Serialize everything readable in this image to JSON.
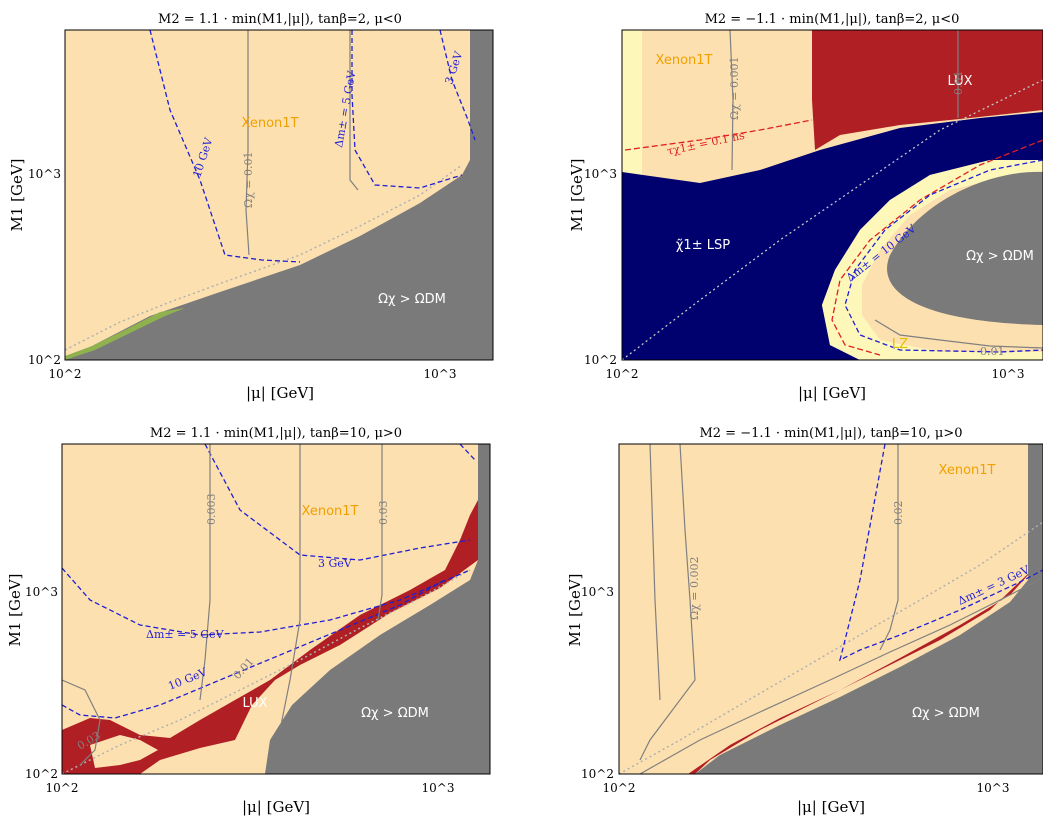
{
  "chart_data": [
    {
      "type": "area",
      "title": "M2 = 1.1 · min(M1,|μ|),  tanβ=2,  μ<0",
      "xlabel": "|μ| [GeV]",
      "ylabel": "M1 [GeV]",
      "xscale": "log",
      "yscale": "log",
      "xlim": [
        100,
        1250
      ],
      "ylim": [
        100,
        6000
      ],
      "xticks": [
        "10^2",
        "10^3"
      ],
      "yticks": [
        "10^2",
        "10^3"
      ],
      "regions": [
        "Xenon1T",
        "Ωχ > ΩDM"
      ],
      "contours": [
        {
          "label": "10 GeV",
          "style": "dashed",
          "color": "#1f1fd6"
        },
        {
          "label": "Δm± = 5 GeV",
          "style": "dashed",
          "color": "#1f1fd6"
        },
        {
          "label": "3 GeV",
          "style": "dashed",
          "color": "#1f1fd6"
        },
        {
          "label": "Ωχ = 0.01",
          "style": "solid",
          "color": "#808080"
        }
      ]
    },
    {
      "type": "area",
      "title": "M2 = −1.1 · min(M1,|μ|),  tanβ=2,  μ<0",
      "xlabel": "|μ| [GeV]",
      "ylabel": "M1 [GeV]",
      "xscale": "log",
      "yscale": "log",
      "xlim": [
        100,
        1250
      ],
      "ylim": [
        100,
        6000
      ],
      "xticks": [
        "10^2",
        "10^3"
      ],
      "yticks": [
        "10^2",
        "10^3"
      ],
      "regions": [
        "Xenon1T",
        "LUX",
        "χ̃1± LSP",
        "Ωχ > ΩDM",
        "LZ"
      ],
      "contours": [
        {
          "label": "Ωχ = 0.001",
          "style": "solid",
          "color": "#808080"
        },
        {
          "label": "0.01",
          "style": "solid",
          "color": "#808080"
        },
        {
          "label": "τχ1± = 0.1 ns",
          "style": "dashed",
          "color": "#e02020"
        },
        {
          "label": "Δm± = 10 GeV",
          "style": "dashed",
          "color": "#1f1fd6"
        },
        {
          "label": "0.01",
          "style": "solid",
          "color": "#808080"
        }
      ]
    },
    {
      "type": "area",
      "title": "M2 = 1.1 · min(M1,|μ|),  tanβ=10,  μ>0",
      "xlabel": "|μ| [GeV]",
      "ylabel": "M1 [GeV]",
      "xscale": "log",
      "yscale": "log",
      "xlim": [
        100,
        1250
      ],
      "ylim": [
        100,
        6000
      ],
      "xticks": [
        "10^2",
        "10^3"
      ],
      "yticks": [
        "10^2",
        "10^3"
      ],
      "regions": [
        "Xenon1T",
        "LUX",
        "Ωχ > ΩDM"
      ],
      "contours": [
        {
          "label": "0.003",
          "style": "solid",
          "color": "#808080"
        },
        {
          "label": "0.03",
          "style": "solid",
          "color": "#808080"
        },
        {
          "label": "0.01",
          "style": "solid",
          "color": "#808080"
        },
        {
          "label": "0.03",
          "style": "solid",
          "color": "#808080"
        },
        {
          "label": "3 GeV",
          "style": "dashed",
          "color": "#1f1fd6"
        },
        {
          "label": "Δm± = 5 GeV",
          "style": "dashed",
          "color": "#1f1fd6"
        },
        {
          "label": "10 GeV",
          "style": "dashed",
          "color": "#1f1fd6"
        }
      ]
    },
    {
      "type": "area",
      "title": "M2 = −1.1 · min(M1,|μ|),  tanβ=10,  μ>0",
      "xlabel": "|μ| [GeV]",
      "ylabel": "M1 [GeV]",
      "xscale": "log",
      "yscale": "log",
      "xlim": [
        100,
        1250
      ],
      "ylim": [
        100,
        6000
      ],
      "xticks": [
        "10^2",
        "10^3"
      ],
      "yticks": [
        "10^2",
        "10^3"
      ],
      "regions": [
        "Xenon1T",
        "Ωχ > ΩDM"
      ],
      "contours": [
        {
          "label": "Ωχ = 0.002",
          "style": "solid",
          "color": "#808080"
        },
        {
          "label": "0.02",
          "style": "solid",
          "color": "#808080"
        },
        {
          "label": "Δm± = 3 GeV",
          "style": "dashed",
          "color": "#1f1fd6"
        }
      ]
    }
  ],
  "colors": {
    "xenon1t": "#fde0b0",
    "excluded_relic": "#7a7a7a",
    "lux": "#b01f24",
    "lsp": "#00006f",
    "lz": "#fdf7b9",
    "green": "#8fb24f",
    "contour_blue": "#1f1fd6",
    "contour_grey": "#808080",
    "tau_red": "#e02020",
    "xenon_text": "#f0a000",
    "lz_text": "#e0c000"
  }
}
